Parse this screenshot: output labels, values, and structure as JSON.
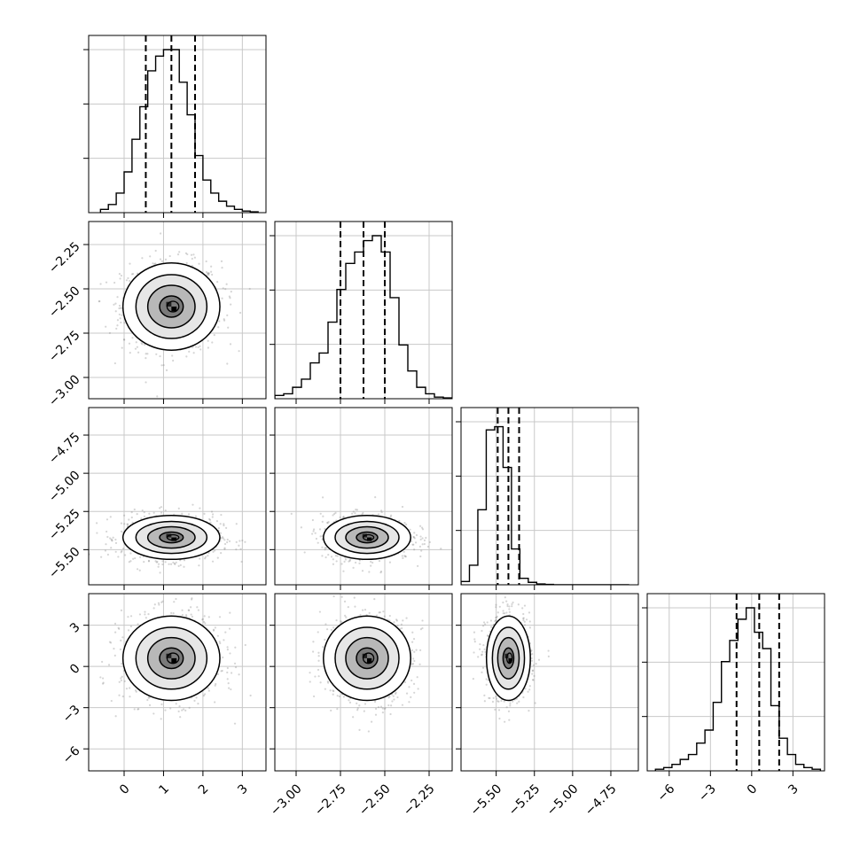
{
  "chart_data": {
    "type": "corner",
    "title": "",
    "parameters": [
      {
        "label": "",
        "range": [
          -0.9,
          3.6
        ],
        "ticks": [
          0,
          1,
          2,
          3
        ],
        "tick_labels": [
          "0",
          "1",
          "2",
          "3"
        ],
        "quantiles": [
          0.55,
          1.2,
          1.8
        ],
        "hist_max": 1.0,
        "hist_x_edges": [
          -0.6,
          -0.4,
          -0.2,
          0.0,
          0.2,
          0.4,
          0.6,
          0.8,
          1.0,
          1.2,
          1.4,
          1.6,
          1.8,
          2.0,
          2.2,
          2.4,
          2.6,
          2.8,
          3.0,
          3.2,
          3.4
        ],
        "hist_heights": [
          0.02,
          0.05,
          0.12,
          0.25,
          0.45,
          0.65,
          0.87,
          0.96,
          1.0,
          1.0,
          0.8,
          0.6,
          0.35,
          0.2,
          0.12,
          0.07,
          0.04,
          0.02,
          0.01,
          0.005
        ],
        "center": 1.2,
        "sigma": 0.6,
        "hist_yticks": [
          0.3333,
          0.6667,
          1.0
        ]
      },
      {
        "label": "",
        "range": [
          -3.12,
          -2.12
        ],
        "ticks": [
          -3.0,
          -2.75,
          -2.5,
          -2.25
        ],
        "tick_labels": [
          "−3.00",
          "−2.75",
          "−2.50",
          "−2.25"
        ],
        "quantiles": [
          -2.75,
          -2.62,
          -2.5
        ],
        "hist_max": 1.0,
        "hist_x_edges": [
          -3.12,
          -3.07,
          -3.02,
          -2.97,
          -2.92,
          -2.87,
          -2.82,
          -2.77,
          -2.72,
          -2.67,
          -2.62,
          -2.57,
          -2.52,
          -2.47,
          -2.42,
          -2.37,
          -2.32,
          -2.27,
          -2.22,
          -2.17,
          -2.12
        ],
        "hist_heights": [
          0.02,
          0.03,
          0.07,
          0.12,
          0.22,
          0.28,
          0.47,
          0.67,
          0.83,
          0.9,
          0.97,
          1.0,
          0.9,
          0.62,
          0.33,
          0.17,
          0.07,
          0.03,
          0.01,
          0.005
        ],
        "center": -2.6,
        "sigma": 0.12,
        "hist_yticks": [
          0.3333,
          0.6667,
          1.0
        ]
      },
      {
        "label": "",
        "range": [
          -5.73,
          -4.57
        ],
        "ticks": [
          -5.5,
          -5.25,
          -5.0,
          -4.75
        ],
        "tick_labels": [
          "−5.50",
          "−5.25",
          "−5.00",
          "−4.75"
        ],
        "quantiles": [
          -5.49,
          -5.42,
          -5.35
        ],
        "hist_max": 1.0,
        "hist_x_edges": [
          -5.73,
          -5.675,
          -5.62,
          -5.565,
          -5.51,
          -5.455,
          -5.4,
          -5.345,
          -5.29,
          -5.235,
          -5.18,
          -5.125,
          -5.07,
          -5.015,
          -4.96,
          -4.905,
          -4.85,
          -4.795,
          -4.74,
          -4.685,
          -4.63
        ],
        "hist_heights": [
          0.02,
          0.12,
          0.46,
          0.95,
          0.97,
          0.72,
          0.22,
          0.04,
          0.015,
          0.005,
          0.002,
          0.0,
          0.0,
          0.0,
          0.0,
          0.0,
          0.0,
          0.0,
          0.0,
          0.0
        ],
        "center": -5.42,
        "sigma": 0.07,
        "hist_yticks": [
          0.3333,
          0.6667,
          1.0
        ]
      },
      {
        "label": "",
        "range": [
          -7.6,
          5.3
        ],
        "ticks": [
          -6,
          -3,
          0,
          3
        ],
        "tick_labels": [
          "−6",
          "−3",
          "0",
          "3"
        ],
        "quantiles": [
          -1.1,
          0.55,
          2.0
        ],
        "hist_max": 1.0,
        "hist_x_edges": [
          -7.0,
          -6.4,
          -5.8,
          -5.2,
          -4.6,
          -4.0,
          -3.4,
          -2.8,
          -2.2,
          -1.6,
          -1.0,
          -0.4,
          0.2,
          0.8,
          1.4,
          2.0,
          2.6,
          3.2,
          3.8,
          4.4,
          5.0
        ],
        "hist_heights": [
          0.01,
          0.02,
          0.04,
          0.07,
          0.1,
          0.17,
          0.25,
          0.42,
          0.67,
          0.8,
          0.93,
          1.0,
          0.85,
          0.75,
          0.4,
          0.2,
          0.1,
          0.04,
          0.02,
          0.01
        ],
        "center": 0.6,
        "sigma": 1.5,
        "hist_yticks": [
          0.3333,
          0.6667,
          1.0
        ]
      }
    ],
    "grid": true,
    "scatter_color": "#888888",
    "contour_color": "#000000",
    "density_colormap": "greys"
  }
}
